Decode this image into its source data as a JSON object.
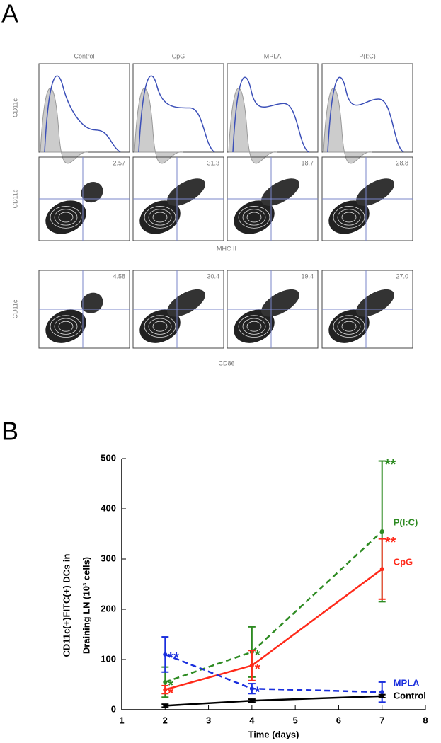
{
  "panel_a": {
    "label": "A",
    "columns": [
      "Control",
      "CpG",
      "MPLA",
      "P(I:C)"
    ],
    "row_labels": [
      "CD11c",
      "CD11c",
      "CD11c"
    ],
    "row2_percent": [
      "2.57",
      "31.3",
      "18.7",
      "28.8"
    ],
    "row3_percent": [
      "4.58",
      "30.4",
      "19.4",
      "27.0"
    ],
    "row2_xlabel": "MHC II",
    "row3_xlabel": "CD86"
  },
  "chart_data": {
    "type": "line",
    "label": "B",
    "xlabel": "Time (days)",
    "ylabel": [
      "CD11c(+)FITC(+) DCs in",
      "Draining LN (10³ cells)"
    ],
    "x": [
      2,
      4,
      7
    ],
    "xlim": [
      1,
      8
    ],
    "xticks": [
      1,
      2,
      3,
      4,
      5,
      6,
      7,
      8
    ],
    "ylim": [
      0,
      500
    ],
    "yticks": [
      0,
      100,
      200,
      300,
      400,
      500
    ],
    "series": [
      {
        "name": "P(I:C)",
        "color": "#2e8b22",
        "dash": true,
        "values": [
          55,
          115,
          355
        ],
        "errors": [
          30,
          50,
          140
        ],
        "significance": [
          "*",
          "*",
          "**"
        ]
      },
      {
        "name": "CpG",
        "color": "#ff2a1a",
        "dash": false,
        "values": [
          40,
          88,
          280
        ],
        "errors": [
          8,
          30,
          60
        ],
        "significance": [
          "*",
          "*",
          "**"
        ]
      },
      {
        "name": "MPLA",
        "color": "#1a2fdd",
        "dash": true,
        "values": [
          110,
          42,
          35
        ],
        "errors": [
          35,
          10,
          20
        ],
        "significance": [
          "**",
          "*",
          null
        ]
      },
      {
        "name": "Control",
        "color": "#000000",
        "dash": false,
        "values": [
          8,
          18,
          27
        ],
        "errors": [
          3,
          3,
          3
        ]
      }
    ]
  }
}
